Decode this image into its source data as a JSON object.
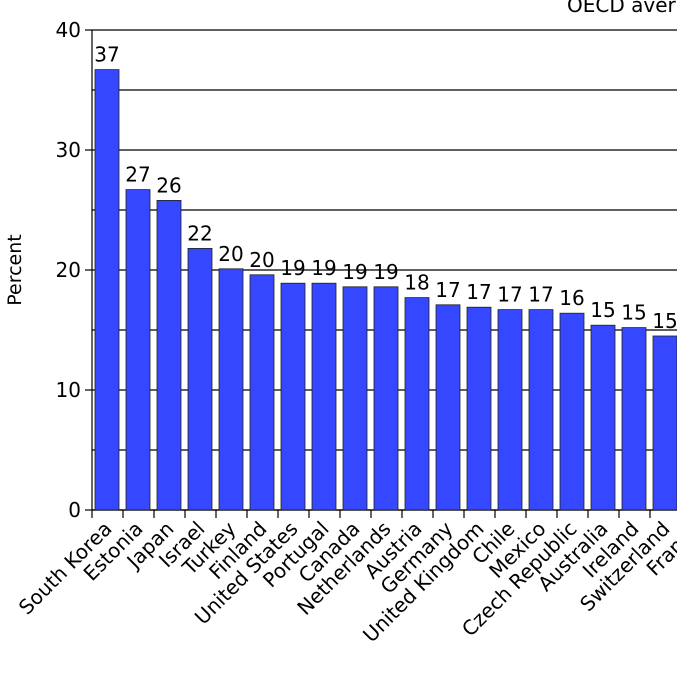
{
  "chart_data": {
    "type": "bar",
    "title": "OECD average",
    "ylabel": "Percent",
    "categories": [
      "South Korea",
      "Estonia",
      "Japan",
      "Israel",
      "Turkey",
      "Finland",
      "United States",
      "Portugal",
      "Canada",
      "Netherlands",
      "Austria",
      "Germany",
      "United Kingdom",
      "Chile",
      "Mexico",
      "Czech Republic",
      "Australia",
      "Ireland",
      "Switzerland",
      "France"
    ],
    "values": [
      36.7,
      26.7,
      25.8,
      21.8,
      20.1,
      19.6,
      18.9,
      18.9,
      18.6,
      18.6,
      17.7,
      17.1,
      16.9,
      16.7,
      16.7,
      16.4,
      15.4,
      15.2,
      14.5,
      null
    ],
    "value_labels": [
      "37",
      "27",
      "26",
      "22",
      "20",
      "20",
      "19",
      "19",
      "19",
      "19",
      "18",
      "17",
      "17",
      "17",
      "17",
      "16",
      "15",
      "15",
      "15",
      null
    ],
    "color": "#3548ff",
    "ylim": [
      0,
      40
    ],
    "yticks": [
      0,
      10,
      20,
      30,
      40
    ],
    "minor_yticks": [
      5,
      15,
      25,
      35
    ],
    "grid": true
  }
}
